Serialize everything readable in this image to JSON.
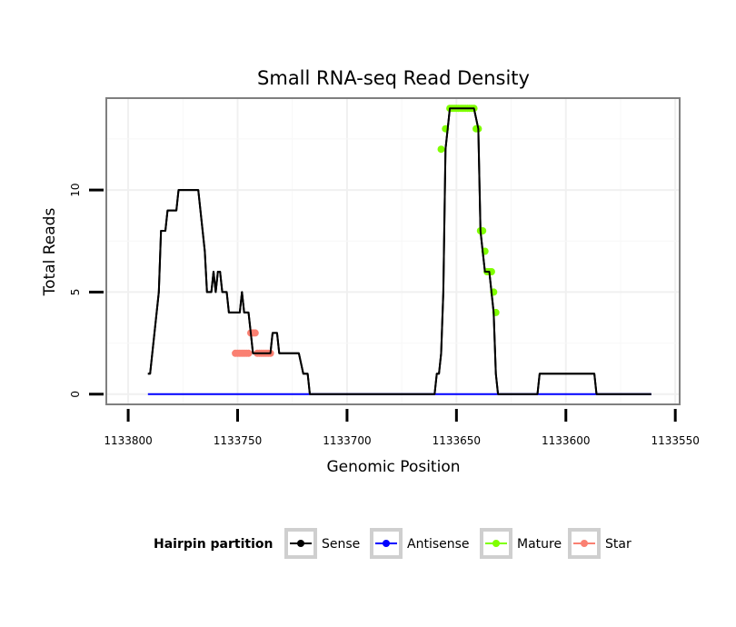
{
  "chart_data": {
    "type": "line",
    "title": "Small RNA-seq Read Density",
    "xlabel": "Genomic Position",
    "ylabel": "Total Reads",
    "xlim": [
      1133810,
      1133548
    ],
    "x_reversed": true,
    "ylim": [
      -0.5,
      14.5
    ],
    "x_ticks": [
      1133800,
      1133750,
      1133700,
      1133650,
      1133600,
      1133550
    ],
    "x_tick_labels": [
      "1133800",
      "1133750",
      "1133700",
      "1133650",
      "1133600",
      "1133550"
    ],
    "y_ticks": [
      0,
      5,
      10
    ],
    "y_tick_labels": [
      "0",
      "5",
      "10"
    ],
    "grid": true,
    "legend": {
      "title": "Hairpin partition",
      "position": "bottom",
      "entries": [
        {
          "name": "Sense",
          "color": "#000000"
        },
        {
          "name": "Antisense",
          "color": "#0000ff"
        },
        {
          "name": "Mature",
          "color": "#7fff00"
        },
        {
          "name": "Star",
          "color": "#fa8072"
        }
      ]
    },
    "series": [
      {
        "name": "Sense",
        "color": "#000000",
        "points": [
          [
            1133791,
            1
          ],
          [
            1133790,
            1
          ],
          [
            1133786,
            5
          ],
          [
            1133785,
            8
          ],
          [
            1133783,
            8
          ],
          [
            1133782,
            9
          ],
          [
            1133778,
            9
          ],
          [
            1133777,
            10
          ],
          [
            1133768,
            10
          ],
          [
            1133766,
            8
          ],
          [
            1133765,
            7
          ],
          [
            1133764,
            5
          ],
          [
            1133762,
            5
          ],
          [
            1133761,
            6
          ],
          [
            1133760,
            5
          ],
          [
            1133759,
            6
          ],
          [
            1133758,
            6
          ],
          [
            1133757,
            5
          ],
          [
            1133755,
            5
          ],
          [
            1133754,
            4
          ],
          [
            1133749,
            4
          ],
          [
            1133748,
            5
          ],
          [
            1133747,
            4
          ],
          [
            1133745,
            4
          ],
          [
            1133744,
            3
          ],
          [
            1133743,
            2
          ],
          [
            1133735,
            2
          ],
          [
            1133734,
            3
          ],
          [
            1133732,
            3
          ],
          [
            1133731,
            2
          ],
          [
            1133722,
            2
          ],
          [
            1133720,
            1
          ],
          [
            1133718,
            1
          ],
          [
            1133717,
            0
          ],
          [
            1133660,
            0
          ],
          [
            1133659,
            1
          ],
          [
            1133658,
            1
          ],
          [
            1133657,
            2
          ],
          [
            1133656,
            5
          ],
          [
            1133655,
            12
          ],
          [
            1133654,
            13
          ],
          [
            1133653,
            14
          ],
          [
            1133642,
            14
          ],
          [
            1133640,
            13
          ],
          [
            1133639,
            8
          ],
          [
            1133638,
            7
          ],
          [
            1133637,
            6
          ],
          [
            1133635,
            6
          ],
          [
            1133634,
            5
          ],
          [
            1133633,
            4
          ],
          [
            1133632,
            1
          ],
          [
            1133631,
            0
          ],
          [
            1133613,
            0
          ],
          [
            1133612,
            1
          ],
          [
            1133587,
            1
          ],
          [
            1133586,
            0
          ],
          [
            1133561,
            0
          ]
        ]
      },
      {
        "name": "Antisense",
        "color": "#0000ff",
        "points": [
          [
            1133791,
            0
          ],
          [
            1133561,
            0
          ]
        ]
      },
      {
        "name": "Mature",
        "color": "#7fff00",
        "points": [
          [
            1133657,
            12
          ],
          [
            1133655,
            13
          ],
          [
            1133653,
            14
          ],
          [
            1133652,
            14
          ],
          [
            1133651,
            14
          ],
          [
            1133650,
            14
          ],
          [
            1133649,
            14
          ],
          [
            1133648,
            14
          ],
          [
            1133647,
            14
          ],
          [
            1133646,
            14
          ],
          [
            1133645,
            14
          ],
          [
            1133644,
            14
          ],
          [
            1133643,
            14
          ],
          [
            1133642,
            14
          ],
          [
            1133641,
            13
          ],
          [
            1133640,
            13
          ],
          [
            1133639,
            8
          ],
          [
            1133638,
            8
          ],
          [
            1133637,
            7
          ],
          [
            1133636,
            6
          ],
          [
            1133635,
            6
          ],
          [
            1133634,
            6
          ],
          [
            1133633,
            5
          ],
          [
            1133632,
            4
          ]
        ]
      },
      {
        "name": "Star",
        "color": "#fa8072",
        "points": [
          [
            1133751,
            2
          ],
          [
            1133750,
            2
          ],
          [
            1133749,
            2
          ],
          [
            1133748,
            2
          ],
          [
            1133747,
            2
          ],
          [
            1133746,
            2
          ],
          [
            1133745,
            2
          ],
          [
            1133744,
            3
          ],
          [
            1133743,
            3
          ],
          [
            1133742,
            3
          ],
          [
            1133741,
            2
          ],
          [
            1133740,
            2
          ],
          [
            1133739,
            2
          ],
          [
            1133738,
            2
          ],
          [
            1133737,
            2
          ],
          [
            1133736,
            2
          ],
          [
            1133735,
            2
          ]
        ]
      }
    ]
  }
}
